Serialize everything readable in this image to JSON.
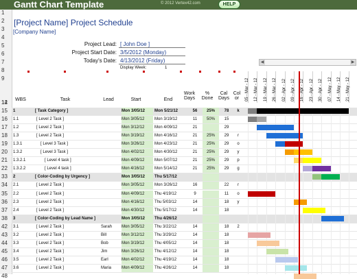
{
  "app": {
    "title": "Gantt Chart Template",
    "copyright": "© 2012 Vertex42.com",
    "help_label": "HELP"
  },
  "header": {
    "project_name": "[Project Name] Project Schedule",
    "company": "[Company Name]",
    "project_lead_label": "Project Lead:",
    "project_lead_value": "[ John Doe ]",
    "start_date_label": "Project Start Date:",
    "start_date_value": "3/5/2012 (Monday)",
    "today_label": "Today's Date:",
    "today_value": "4/13/2012 (Friday)",
    "display_week_label": "Display Week:",
    "display_week_value": "1"
  },
  "row_numbers": [
    "1",
    "2",
    "3",
    "4",
    "5",
    "6",
    "7",
    "8",
    "9",
    "12",
    "14",
    "15",
    "16",
    "17",
    "18",
    "19",
    "20",
    "21",
    "22",
    "33",
    "34",
    "35",
    "36",
    "37",
    "38",
    "42",
    "43",
    "44",
    "45",
    "46",
    "47",
    "48"
  ],
  "columns": {
    "wbs": "WBS",
    "task": "Task",
    "lead": "Lead",
    "start": "Start",
    "end": "End",
    "work_days": "Work Days",
    "pct_done": "% Done",
    "cal_days": "Cal Days",
    "color": "Col or"
  },
  "date_headers": [
    "05 - Mar - 12",
    "12 - Mar - 12",
    "19 - Mar - 12",
    "26 - Mar - 12",
    "02 - Apr - 12",
    "09 - Apr - 12",
    "16 - Apr - 12",
    "23 - Apr - 12",
    "30 - Apr - 12",
    "07 - May - 12",
    "14 - May - 12",
    "21 - May - 12"
  ],
  "rows": [
    {
      "num": "15",
      "wbs": "1",
      "task": "[ Task Category ]",
      "lead": "",
      "start": "Mon 3/05/12",
      "end": "Mon 5/21/12",
      "work": "56",
      "pct": "25%",
      "cal": "78",
      "col": "k",
      "section": true
    },
    {
      "num": "16",
      "wbs": "1.1",
      "task": "[ Level 2 Task ]",
      "lead": "",
      "start": "Mon 3/05/12",
      "end": "Mon 3/19/12",
      "work": "11",
      "pct": "50%",
      "cal": "15",
      "col": "",
      "section": false
    },
    {
      "num": "17",
      "wbs": "1.2",
      "task": "[ Level 2 Task ]",
      "lead": "",
      "start": "Mon 3/12/12",
      "end": "Mon 4/09/12",
      "work": "21",
      "pct": "",
      "cal": "29",
      "col": "",
      "section": false
    },
    {
      "num": "18",
      "wbs": "1.3",
      "task": "[ Level 2 Task ]",
      "lead": "",
      "start": "Mon 3/19/12",
      "end": "Mon 4/16/12",
      "work": "21",
      "pct": "25%",
      "cal": "29",
      "col": "r",
      "section": false
    },
    {
      "num": "19",
      "wbs": "1.3.1",
      "task": "[ Level 3 Task ]",
      "lead": "",
      "start": "Mon 3/26/12",
      "end": "Mon 4/23/12",
      "work": "21",
      "pct": "25%",
      "cal": "29",
      "col": "o",
      "section": false
    },
    {
      "num": "20",
      "wbs": "1.3.2",
      "task": "[ Level 3 Task ]",
      "lead": "",
      "start": "Mon 4/02/12",
      "end": "Mon 4/30/12",
      "work": "21",
      "pct": "25%",
      "cal": "29",
      "col": "y",
      "section": false
    },
    {
      "num": "21",
      "wbs": "1.3.2.1",
      "task": "[ Level 4 task ]",
      "lead": "",
      "start": "Mon 4/09/12",
      "end": "Mon 5/07/12",
      "work": "21",
      "pct": "25%",
      "cal": "29",
      "col": "p",
      "section": false
    },
    {
      "num": "22",
      "wbs": "1.3.2.2",
      "task": "[ Level 4 task ]",
      "lead": "",
      "start": "Mon 4/16/12",
      "end": "Mon 5/14/12",
      "work": "21",
      "pct": "25%",
      "cal": "29",
      "col": "g",
      "section": false
    },
    {
      "num": "33",
      "wbs": "2",
      "task": "[ Color-Coding by Urgency ]",
      "lead": "",
      "start": "Mon 3/05/12",
      "end": "Thu 5/17/12",
      "work": "",
      "pct": "",
      "cal": "",
      "col": "",
      "section": true
    },
    {
      "num": "34",
      "wbs": "2.1",
      "task": "[ Level 2 Task ]",
      "lead": "",
      "start": "Mon 3/05/12",
      "end": "Mon 3/26/12",
      "work": "16",
      "pct": "",
      "cal": "22",
      "col": "r",
      "section": false
    },
    {
      "num": "35",
      "wbs": "2.2",
      "task": "[ Level 2 Task ]",
      "lead": "",
      "start": "Mon 4/09/12",
      "end": "Thu 4/19/12",
      "work": "9",
      "pct": "",
      "cal": "11",
      "col": "o",
      "section": false
    },
    {
      "num": "36",
      "wbs": "2.3",
      "task": "[ Level 2 Task ]",
      "lead": "",
      "start": "Mon 4/16/12",
      "end": "Thu 5/03/12",
      "work": "14",
      "pct": "",
      "cal": "18",
      "col": "y",
      "section": false
    },
    {
      "num": "37",
      "wbs": "2.4",
      "task": "[ Level 2 Task ]",
      "lead": "",
      "start": "Mon 4/30/12",
      "end": "Thu 5/17/12",
      "work": "14",
      "pct": "",
      "cal": "18",
      "col": "",
      "section": false
    },
    {
      "num": "42",
      "wbs": "3",
      "task": "[ Color-Coding by Lead Name ]",
      "lead": "",
      "start": "Mon 3/05/12",
      "end": "Thu 4/26/12",
      "work": "",
      "pct": "",
      "cal": "",
      "col": "",
      "section": true
    },
    {
      "num": "43",
      "wbs": "3.1",
      "task": "[ Level 2 Task ]",
      "lead": "Sarah",
      "start": "Mon 3/05/12",
      "end": "Thu 3/22/12",
      "work": "14",
      "pct": "",
      "cal": "18",
      "col": "2",
      "section": false
    },
    {
      "num": "44",
      "wbs": "3.2",
      "task": "[ Level 2 Task ]",
      "lead": "Bill",
      "start": "Mon 3/12/12",
      "end": "Thu 3/29/12",
      "work": "14",
      "pct": "",
      "cal": "18",
      "col": "",
      "section": false
    },
    {
      "num": "45",
      "wbs": "3.3",
      "task": "[ Level 2 Task ]",
      "lead": "Bob",
      "start": "Mon 3/19/12",
      "end": "Thu 4/05/12",
      "work": "14",
      "pct": "",
      "cal": "18",
      "col": "",
      "section": false
    },
    {
      "num": "46",
      "wbs": "3.4",
      "task": "[ Level 2 Task ]",
      "lead": "Jim",
      "start": "Mon 3/26/12",
      "end": "Thu 4/12/12",
      "work": "14",
      "pct": "",
      "cal": "18",
      "col": "",
      "section": false
    },
    {
      "num": "47",
      "wbs": "3.5",
      "task": "[ Level 2 Task ]",
      "lead": "Earl",
      "start": "Mon 4/02/12",
      "end": "Thu 4/19/12",
      "work": "14",
      "pct": "",
      "cal": "18",
      "col": "",
      "section": false
    },
    {
      "num": "48",
      "wbs": "3.6",
      "task": "[ Level 2 Task ]",
      "lead": "Maria",
      "start": "Mon 4/09/12",
      "end": "Thu 4/26/12",
      "work": "14",
      "pct": "",
      "cal": "18",
      "col": "",
      "section": false
    }
  ],
  "bars": [
    {
      "row": 0,
      "segments": [
        {
          "start": "2012-03-05",
          "end": "2012-03-12",
          "color": "#7f7f7f"
        },
        {
          "start": "2012-03-12",
          "end": "2012-05-21",
          "color": "#000000"
        }
      ]
    },
    {
      "row": 1,
      "segments": [
        {
          "start": "2012-03-05",
          "end": "2012-03-12",
          "color": "#7f7f7f"
        },
        {
          "start": "2012-03-12",
          "end": "2012-03-19",
          "color": "#a6a6a6"
        }
      ]
    },
    {
      "row": 2,
      "segments": [
        {
          "start": "2012-03-12",
          "end": "2012-04-09",
          "color": "#1f6fd6"
        }
      ]
    },
    {
      "row": 3,
      "segments": [
        {
          "start": "2012-03-19",
          "end": "2012-04-16",
          "color": "#1f6fd6"
        }
      ]
    },
    {
      "row": 4,
      "segments": [
        {
          "start": "2012-03-26",
          "end": "2012-04-02",
          "color": "#1f6fd6"
        },
        {
          "start": "2012-04-02",
          "end": "2012-04-16",
          "color": "#c00000"
        }
      ]
    },
    {
      "row": 5,
      "segments": [
        {
          "start": "2012-04-02",
          "end": "2012-04-09",
          "color": "#f59b00"
        },
        {
          "start": "2012-04-09",
          "end": "2012-04-23",
          "color": "#ffc000"
        }
      ]
    },
    {
      "row": 6,
      "segments": [
        {
          "start": "2012-04-09",
          "end": "2012-04-16",
          "color": "#ffd966"
        },
        {
          "start": "2012-04-16",
          "end": "2012-04-30",
          "color": "#ffff00"
        }
      ]
    },
    {
      "row": 7,
      "segments": [
        {
          "start": "2012-04-16",
          "end": "2012-04-23",
          "color": "#b4a7d6"
        },
        {
          "start": "2012-04-23",
          "end": "2012-05-07",
          "color": "#7030a0"
        }
      ]
    },
    {
      "row": 8,
      "segments": [
        {
          "start": "2012-04-23",
          "end": "2012-04-30",
          "color": "#93c47d"
        },
        {
          "start": "2012-04-30",
          "end": "2012-05-14",
          "color": "#00b050"
        }
      ]
    },
    {
      "row": 10,
      "segments": [
        {
          "start": "2012-03-05",
          "end": "2012-03-26",
          "color": "#c00000"
        }
      ]
    },
    {
      "row": 11,
      "segments": [
        {
          "start": "2012-04-09",
          "end": "2012-04-19",
          "color": "#f59b00"
        }
      ]
    },
    {
      "row": 12,
      "segments": [
        {
          "start": "2012-04-16",
          "end": "2012-05-03",
          "color": "#ffff00"
        }
      ]
    },
    {
      "row": 13,
      "segments": [
        {
          "start": "2012-04-30",
          "end": "2012-05-17",
          "color": "#1f6fd6"
        }
      ]
    },
    {
      "row": 15,
      "segments": [
        {
          "start": "2012-03-05",
          "end": "2012-03-22",
          "color": "#e6a4a4"
        }
      ]
    },
    {
      "row": 16,
      "segments": [
        {
          "start": "2012-03-12",
          "end": "2012-03-29",
          "color": "#f8c99a"
        }
      ]
    },
    {
      "row": 17,
      "segments": [
        {
          "start": "2012-03-19",
          "end": "2012-04-05",
          "color": "#c9e3a8"
        }
      ]
    },
    {
      "row": 18,
      "segments": [
        {
          "start": "2012-03-26",
          "end": "2012-04-12",
          "color": "#b9c9ee"
        }
      ]
    },
    {
      "row": 19,
      "segments": [
        {
          "start": "2012-04-02",
          "end": "2012-04-19",
          "color": "#a5e6ea"
        }
      ]
    },
    {
      "row": 20,
      "segments": [
        {
          "start": "2012-04-09",
          "end": "2012-04-26",
          "color": "#f8c99a"
        }
      ]
    }
  ]
}
